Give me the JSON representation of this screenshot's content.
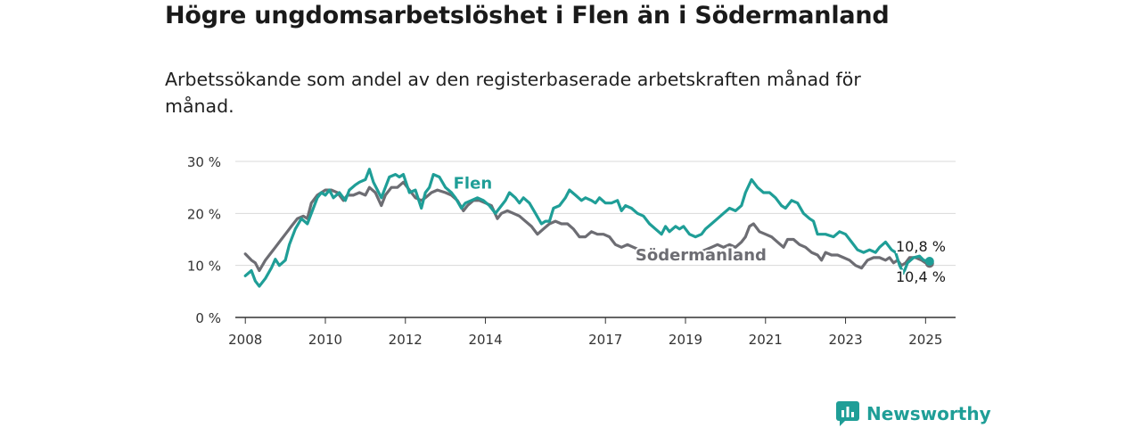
{
  "title": "Högre ungdomsarbetslöshet i Flen än i Södermanland",
  "subtitle": "Arbetssökande som andel av den registerbaserade arbetskraften månad för månad.",
  "logo": {
    "text": "Newsworthy",
    "icon": "newsworthy-logo-icon",
    "color": "#1f9e97"
  },
  "chart_data": {
    "type": "line",
    "title": "Högre ungdomsarbetslöshet i Flen än i Södermanland",
    "subtitle": "Arbetssökande som andel av den registerbaserade arbetskraften månad för månad.",
    "xlabel": "",
    "ylabel": "",
    "xlim": [
      2007.75,
      2025.75
    ],
    "ylim": [
      0,
      30
    ],
    "grid": true,
    "x_ticks": [
      2008,
      2010,
      2012,
      2014,
      2017,
      2019,
      2021,
      2023,
      2025
    ],
    "x_tick_labels": [
      "2008",
      "2010",
      "2012",
      "2014",
      "2017",
      "2019",
      "2021",
      "2023",
      "2025"
    ],
    "y_ticks": [
      0,
      10,
      20,
      30
    ],
    "y_tick_labels": [
      "0 %",
      "10 %",
      "20 %",
      "30 %"
    ],
    "series": [
      {
        "name": "Flen",
        "color": "#1f9e97",
        "label_at": [
          2013.2,
          24.8
        ],
        "end_label": "10,8 %",
        "points": [
          [
            2008.0,
            8.0
          ],
          [
            2008.15,
            9.0
          ],
          [
            2008.25,
            7.0
          ],
          [
            2008.35,
            6.0
          ],
          [
            2008.5,
            7.5
          ],
          [
            2008.65,
            9.5
          ],
          [
            2008.75,
            11.2
          ],
          [
            2008.85,
            10.0
          ],
          [
            2009.0,
            11.0
          ],
          [
            2009.1,
            14.0
          ],
          [
            2009.25,
            17.0
          ],
          [
            2009.4,
            19.0
          ],
          [
            2009.55,
            18.0
          ],
          [
            2009.7,
            21.0
          ],
          [
            2009.8,
            23.0
          ],
          [
            2009.9,
            24.0
          ],
          [
            2010.0,
            23.5
          ],
          [
            2010.1,
            24.5
          ],
          [
            2010.2,
            23.0
          ],
          [
            2010.35,
            24.0
          ],
          [
            2010.5,
            22.5
          ],
          [
            2010.6,
            24.5
          ],
          [
            2010.75,
            25.5
          ],
          [
            2010.85,
            26.0
          ],
          [
            2011.0,
            26.5
          ],
          [
            2011.1,
            28.5
          ],
          [
            2011.2,
            26.0
          ],
          [
            2011.3,
            24.5
          ],
          [
            2011.4,
            23.0
          ],
          [
            2011.5,
            25.0
          ],
          [
            2011.6,
            27.0
          ],
          [
            2011.75,
            27.5
          ],
          [
            2011.85,
            27.0
          ],
          [
            2011.95,
            27.5
          ],
          [
            2012.1,
            24.0
          ],
          [
            2012.25,
            24.5
          ],
          [
            2012.4,
            21.0
          ],
          [
            2012.5,
            24.0
          ],
          [
            2012.6,
            25.0
          ],
          [
            2012.7,
            27.5
          ],
          [
            2012.85,
            27.0
          ],
          [
            2013.0,
            25.0
          ],
          [
            2013.15,
            24.0
          ],
          [
            2013.25,
            23.0
          ],
          [
            2013.4,
            21.0
          ],
          [
            2013.5,
            22.0
          ],
          [
            2013.65,
            22.5
          ],
          [
            2013.8,
            23.0
          ],
          [
            2013.95,
            22.5
          ],
          [
            2014.1,
            21.5
          ],
          [
            2014.25,
            20.0
          ],
          [
            2014.4,
            21.5
          ],
          [
            2014.5,
            22.5
          ],
          [
            2014.6,
            24.0
          ],
          [
            2014.75,
            23.0
          ],
          [
            2014.85,
            22.0
          ],
          [
            2014.95,
            23.0
          ],
          [
            2015.1,
            22.0
          ],
          [
            2015.25,
            20.0
          ],
          [
            2015.4,
            18.0
          ],
          [
            2015.5,
            18.5
          ],
          [
            2015.6,
            18.5
          ],
          [
            2015.7,
            21.0
          ],
          [
            2015.85,
            21.5
          ],
          [
            2016.0,
            23.0
          ],
          [
            2016.1,
            24.5
          ],
          [
            2016.25,
            23.5
          ],
          [
            2016.4,
            22.5
          ],
          [
            2016.5,
            23.0
          ],
          [
            2016.65,
            22.5
          ],
          [
            2016.75,
            22.0
          ],
          [
            2016.85,
            23.0
          ],
          [
            2017.0,
            22.0
          ],
          [
            2017.15,
            22.0
          ],
          [
            2017.3,
            22.5
          ],
          [
            2017.4,
            20.5
          ],
          [
            2017.5,
            21.5
          ],
          [
            2017.65,
            21.0
          ],
          [
            2017.8,
            20.0
          ],
          [
            2017.95,
            19.5
          ],
          [
            2018.1,
            18.0
          ],
          [
            2018.25,
            17.0
          ],
          [
            2018.4,
            16.0
          ],
          [
            2018.5,
            17.5
          ],
          [
            2018.6,
            16.5
          ],
          [
            2018.75,
            17.5
          ],
          [
            2018.85,
            17.0
          ],
          [
            2018.95,
            17.5
          ],
          [
            2019.1,
            16.0
          ],
          [
            2019.25,
            15.5
          ],
          [
            2019.4,
            16.0
          ],
          [
            2019.5,
            17.0
          ],
          [
            2019.65,
            18.0
          ],
          [
            2019.8,
            19.0
          ],
          [
            2019.95,
            20.0
          ],
          [
            2020.1,
            21.0
          ],
          [
            2020.25,
            20.5
          ],
          [
            2020.4,
            21.5
          ],
          [
            2020.5,
            24.0
          ],
          [
            2020.65,
            26.5
          ],
          [
            2020.8,
            25.0
          ],
          [
            2020.95,
            24.0
          ],
          [
            2021.1,
            24.0
          ],
          [
            2021.25,
            23.0
          ],
          [
            2021.4,
            21.5
          ],
          [
            2021.5,
            21.0
          ],
          [
            2021.65,
            22.5
          ],
          [
            2021.8,
            22.0
          ],
          [
            2021.95,
            20.0
          ],
          [
            2022.1,
            19.0
          ],
          [
            2022.2,
            18.5
          ],
          [
            2022.3,
            16.0
          ],
          [
            2022.5,
            16.0
          ],
          [
            2022.7,
            15.5
          ],
          [
            2022.85,
            16.5
          ],
          [
            2023.0,
            16.0
          ],
          [
            2023.15,
            14.5
          ],
          [
            2023.3,
            13.0
          ],
          [
            2023.45,
            12.5
          ],
          [
            2023.6,
            13.0
          ],
          [
            2023.75,
            12.5
          ],
          [
            2023.85,
            13.5
          ],
          [
            2024.0,
            14.5
          ],
          [
            2024.15,
            13.0
          ],
          [
            2024.25,
            12.5
          ],
          [
            2024.35,
            10.0
          ],
          [
            2024.45,
            8.5
          ],
          [
            2024.55,
            10.5
          ],
          [
            2024.7,
            11.5
          ],
          [
            2024.85,
            11.8
          ],
          [
            2024.95,
            11.0
          ],
          [
            2025.1,
            10.8
          ]
        ]
      },
      {
        "name": "Södermanland",
        "color": "#6d6d73",
        "label_at": [
          2017.75,
          11.0
        ],
        "end_label": "10,4 %",
        "points": [
          [
            2008.0,
            12.2
          ],
          [
            2008.15,
            11.0
          ],
          [
            2008.25,
            10.5
          ],
          [
            2008.35,
            9.0
          ],
          [
            2008.5,
            11.0
          ],
          [
            2008.65,
            12.5
          ],
          [
            2008.75,
            13.5
          ],
          [
            2008.9,
            15.0
          ],
          [
            2009.0,
            16.0
          ],
          [
            2009.15,
            17.5
          ],
          [
            2009.3,
            19.0
          ],
          [
            2009.45,
            19.5
          ],
          [
            2009.55,
            19.0
          ],
          [
            2009.65,
            22.0
          ],
          [
            2009.8,
            23.5
          ],
          [
            2009.9,
            24.0
          ],
          [
            2010.0,
            24.5
          ],
          [
            2010.15,
            24.5
          ],
          [
            2010.3,
            24.0
          ],
          [
            2010.45,
            22.5
          ],
          [
            2010.55,
            23.5
          ],
          [
            2010.7,
            23.5
          ],
          [
            2010.85,
            24.0
          ],
          [
            2011.0,
            23.5
          ],
          [
            2011.1,
            25.0
          ],
          [
            2011.25,
            24.0
          ],
          [
            2011.4,
            21.5
          ],
          [
            2011.5,
            23.5
          ],
          [
            2011.65,
            25.0
          ],
          [
            2011.8,
            25.0
          ],
          [
            2011.95,
            26.0
          ],
          [
            2012.1,
            24.5
          ],
          [
            2012.25,
            23.0
          ],
          [
            2012.4,
            22.5
          ],
          [
            2012.5,
            23.0
          ],
          [
            2012.65,
            24.0
          ],
          [
            2012.8,
            24.5
          ],
          [
            2013.0,
            24.0
          ],
          [
            2013.15,
            23.5
          ],
          [
            2013.3,
            22.5
          ],
          [
            2013.45,
            20.5
          ],
          [
            2013.55,
            21.5
          ],
          [
            2013.7,
            22.5
          ],
          [
            2013.85,
            22.5
          ],
          [
            2014.0,
            22.0
          ],
          [
            2014.15,
            21.5
          ],
          [
            2014.3,
            19.0
          ],
          [
            2014.4,
            20.0
          ],
          [
            2014.55,
            20.5
          ],
          [
            2014.7,
            20.0
          ],
          [
            2014.85,
            19.5
          ],
          [
            2015.0,
            18.5
          ],
          [
            2015.15,
            17.5
          ],
          [
            2015.3,
            16.0
          ],
          [
            2015.45,
            17.0
          ],
          [
            2015.6,
            18.0
          ],
          [
            2015.75,
            18.5
          ],
          [
            2015.9,
            18.0
          ],
          [
            2016.05,
            18.0
          ],
          [
            2016.2,
            17.0
          ],
          [
            2016.35,
            15.5
          ],
          [
            2016.5,
            15.5
          ],
          [
            2016.65,
            16.5
          ],
          [
            2016.8,
            16.0
          ],
          [
            2016.95,
            16.0
          ],
          [
            2017.1,
            15.5
          ],
          [
            2017.25,
            14.0
          ],
          [
            2017.4,
            13.5
          ],
          [
            2017.55,
            14.0
          ],
          [
            2017.7,
            13.5
          ],
          [
            2017.85,
            13.0
          ],
          [
            2018.0,
            12.8
          ]
        ],
        "points_b": [
          [
            2019.35,
            12.5
          ],
          [
            2019.5,
            13.0
          ],
          [
            2019.65,
            13.5
          ],
          [
            2019.8,
            14.0
          ],
          [
            2019.95,
            13.5
          ],
          [
            2020.1,
            14.0
          ],
          [
            2020.25,
            13.5
          ],
          [
            2020.4,
            14.5
          ],
          [
            2020.5,
            15.5
          ],
          [
            2020.6,
            17.5
          ],
          [
            2020.7,
            18.0
          ],
          [
            2020.85,
            16.5
          ],
          [
            2021.0,
            16.0
          ],
          [
            2021.15,
            15.5
          ],
          [
            2021.3,
            14.5
          ],
          [
            2021.45,
            13.5
          ],
          [
            2021.55,
            15.0
          ],
          [
            2021.7,
            15.0
          ],
          [
            2021.85,
            14.0
          ],
          [
            2022.0,
            13.5
          ],
          [
            2022.15,
            12.5
          ],
          [
            2022.3,
            12.0
          ],
          [
            2022.4,
            11.0
          ],
          [
            2022.5,
            12.5
          ],
          [
            2022.65,
            12.0
          ],
          [
            2022.8,
            12.0
          ],
          [
            2022.95,
            11.5
          ],
          [
            2023.1,
            11.0
          ],
          [
            2023.25,
            10.0
          ],
          [
            2023.4,
            9.5
          ],
          [
            2023.55,
            11.0
          ],
          [
            2023.7,
            11.5
          ],
          [
            2023.85,
            11.5
          ],
          [
            2024.0,
            11.0
          ],
          [
            2024.1,
            11.5
          ],
          [
            2024.2,
            10.5
          ],
          [
            2024.3,
            11.0
          ],
          [
            2024.4,
            10.0
          ],
          [
            2024.5,
            10.5
          ],
          [
            2024.6,
            11.5
          ],
          [
            2024.75,
            11.5
          ],
          [
            2024.9,
            11.0
          ],
          [
            2025.0,
            10.5
          ],
          [
            2025.1,
            10.4
          ]
        ]
      }
    ]
  }
}
